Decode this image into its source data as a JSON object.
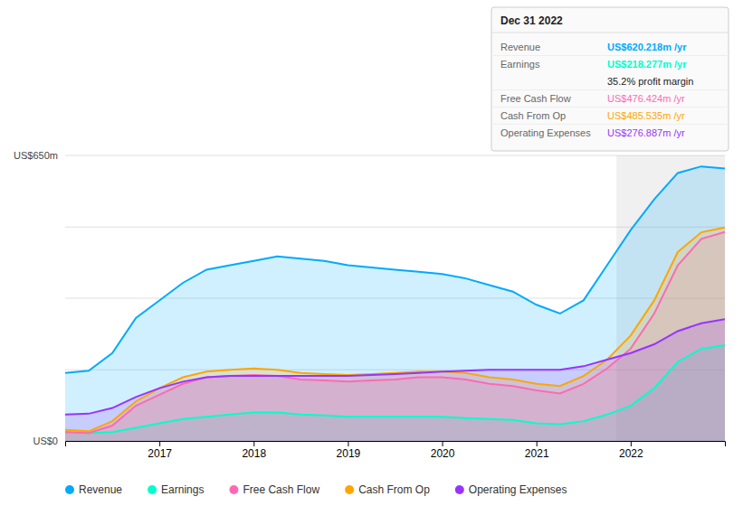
{
  "chart_data": {
    "type": "area",
    "x": [
      2016.0,
      2016.25,
      2016.5,
      2016.75,
      2017.0,
      2017.25,
      2017.5,
      2017.75,
      2018.0,
      2018.25,
      2018.5,
      2018.75,
      2019.0,
      2019.25,
      2019.5,
      2019.75,
      2020.0,
      2020.25,
      2020.5,
      2020.75,
      2021.0,
      2021.25,
      2021.5,
      2021.75,
      2022.0,
      2022.25,
      2022.5,
      2022.75,
      2023.0
    ],
    "series": [
      {
        "name": "Revenue",
        "color": "#00aaff",
        "values": [
          155,
          160,
          200,
          280,
          320,
          360,
          390,
          400,
          410,
          420,
          415,
          410,
          400,
          395,
          390,
          385,
          380,
          370,
          355,
          340,
          310,
          290,
          320,
          400,
          480,
          550,
          610,
          625,
          620
        ]
      },
      {
        "name": "Earnings",
        "color": "#00ffcc",
        "values": [
          20,
          18,
          20,
          30,
          40,
          50,
          55,
          60,
          65,
          65,
          60,
          58,
          55,
          55,
          55,
          55,
          55,
          52,
          50,
          48,
          40,
          38,
          45,
          60,
          80,
          120,
          180,
          210,
          218
        ]
      },
      {
        "name": "Free Cash Flow",
        "color": "#ff69b4",
        "values": [
          20,
          18,
          35,
          80,
          105,
          130,
          145,
          148,
          150,
          148,
          140,
          138,
          135,
          138,
          140,
          145,
          145,
          140,
          130,
          125,
          115,
          108,
          130,
          165,
          210,
          290,
          400,
          460,
          476
        ]
      },
      {
        "name": "Cash From Op",
        "color": "#ffa500",
        "values": [
          25,
          22,
          45,
          90,
          120,
          145,
          158,
          162,
          165,
          162,
          155,
          152,
          150,
          152,
          155,
          158,
          158,
          155,
          145,
          140,
          130,
          125,
          148,
          185,
          240,
          320,
          430,
          475,
          486
        ]
      },
      {
        "name": "Operating Expenses",
        "color": "#9933ff",
        "values": [
          60,
          62,
          75,
          100,
          120,
          135,
          145,
          148,
          148,
          148,
          148,
          148,
          148,
          150,
          152,
          155,
          158,
          160,
          162,
          162,
          162,
          162,
          170,
          185,
          200,
          220,
          250,
          268,
          277
        ]
      }
    ],
    "xlim": [
      2016.0,
      2023.0
    ],
    "xticks": [
      2017,
      2018,
      2019,
      2020,
      2021,
      2022
    ],
    "ylim": [
      0,
      650
    ],
    "yticks": [
      0,
      162,
      325,
      487,
      650
    ],
    "grid": true,
    "tick_labels": "x",
    "legend": "bottom",
    "annotations": [
      {
        "text": "US$650m",
        "y": 650
      },
      {
        "text": "US$0",
        "y": 0
      }
    ],
    "shaded_region": [
      2021.85,
      2023.0
    ],
    "tooltip": {
      "title": "Dec 31 2022",
      "rows": [
        {
          "label": "Revenue",
          "value": "US$620.218m /yr",
          "color": "#00aaff"
        },
        {
          "label": "Earnings",
          "value": "US$218.277m /yr",
          "color": "#00ffcc"
        },
        {
          "value": "35.2% profit margin",
          "color": "#ffffff"
        },
        {
          "label": "Free Cash Flow",
          "value": "US$476.424m /yr",
          "color": "#ff69b4"
        },
        {
          "label": "Cash From Op",
          "value": "US$485.535m /yr",
          "color": "#ffa500"
        },
        {
          "label": "Operating Expenses",
          "value": "US$276.887m /yr",
          "color": "#9933ff"
        }
      ]
    }
  }
}
